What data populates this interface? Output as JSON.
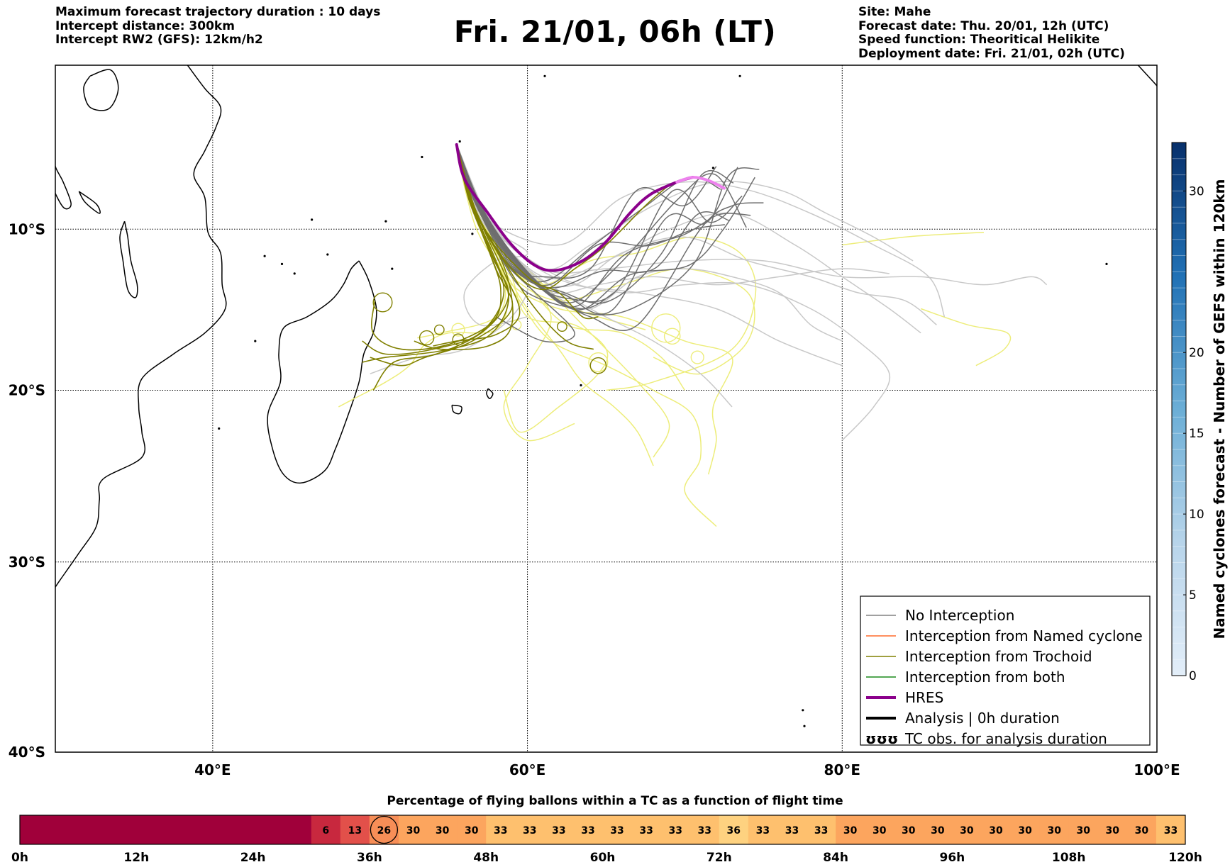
{
  "header": {
    "left_lines": [
      "Maximum forecast trajectory duration : 10 days",
      "Intercept distance: 300km",
      "Intercept RW2 (GFS):  12km/h2"
    ],
    "title": "Fri. 21/01, 06h (LT)",
    "right_lines": [
      "Site: Mahe",
      "Forecast date: Thu. 20/01, 12h (UTC)",
      "Speed function: Theoritical Helikite",
      "Deployment date: Fri. 21/01, 02h (UTC)"
    ]
  },
  "map": {
    "lon_range": [
      30,
      100
    ],
    "lat_range": [
      -40,
      0.5
    ],
    "lon_ticks": [
      {
        "value": 40,
        "label": "40°E"
      },
      {
        "value": 60,
        "label": "60°E"
      },
      {
        "value": 80,
        "label": "80°E"
      },
      {
        "value": 100,
        "label": "100°E"
      }
    ],
    "lat_ticks": [
      {
        "value": -10,
        "label": "10°S"
      },
      {
        "value": -20,
        "label": "20°S"
      },
      {
        "value": -30,
        "label": "30°S"
      },
      {
        "value": -40,
        "label": "40°S"
      }
    ],
    "colors": {
      "no_interception": "#6e6e6e",
      "no_interception_light": "#c8c8c8",
      "trochoid": "#808000",
      "trochoid_light": "#eded7a",
      "hres": "#8b008b",
      "hres_end": "#ee82ee"
    }
  },
  "legend": {
    "items": [
      {
        "label": "No Interception",
        "color": "#808080",
        "width": 1.5,
        "style": "line"
      },
      {
        "label": "Interception from Named cyclone",
        "color": "#ff6a2a",
        "width": 1.5,
        "style": "line"
      },
      {
        "label": "Interception from Trochoid",
        "color": "#808000",
        "width": 1.5,
        "style": "line"
      },
      {
        "label": "Interception from both",
        "color": "#1a8a1a",
        "width": 1.5,
        "style": "line"
      },
      {
        "label": "HRES",
        "color": "#8b008b",
        "width": 4,
        "style": "line"
      },
      {
        "label": "Analysis | 0h duration",
        "color": "#000000",
        "width": 4,
        "style": "line"
      },
      {
        "label": "TC obs. for analysis duration",
        "color": "#000000",
        "width": 0,
        "style": "glyph",
        "glyph": "ʊʊʊ"
      }
    ]
  },
  "colorbar": {
    "label": "Named cyclones forecast - Number of GEFS within 120km",
    "min": 0,
    "max": 33,
    "ticks": [
      0,
      5,
      10,
      15,
      20,
      30
    ]
  },
  "chart_data": {
    "type": "heatmap",
    "title": "Percentage of flying ballons within a TC as a function of flight time",
    "x_range_hours": [
      0,
      120
    ],
    "x_ticks": [
      "0h",
      "12h",
      "24h",
      "36h",
      "48h",
      "60h",
      "72h",
      "84h",
      "96h",
      "108h",
      "120h"
    ],
    "cells": [
      {
        "start_h": 0,
        "end_h": 30,
        "value": null
      },
      {
        "start_h": 30,
        "end_h": 33,
        "value": 6
      },
      {
        "start_h": 33,
        "end_h": 36,
        "value": 13
      },
      {
        "start_h": 36,
        "end_h": 39,
        "value": 26,
        "circled": true
      },
      {
        "start_h": 39,
        "end_h": 42,
        "value": 30
      },
      {
        "start_h": 42,
        "end_h": 45,
        "value": 30
      },
      {
        "start_h": 45,
        "end_h": 48,
        "value": 30
      },
      {
        "start_h": 48,
        "end_h": 51,
        "value": 33
      },
      {
        "start_h": 51,
        "end_h": 54,
        "value": 33
      },
      {
        "start_h": 54,
        "end_h": 57,
        "value": 33
      },
      {
        "start_h": 57,
        "end_h": 60,
        "value": 33
      },
      {
        "start_h": 60,
        "end_h": 63,
        "value": 33
      },
      {
        "start_h": 63,
        "end_h": 66,
        "value": 33
      },
      {
        "start_h": 66,
        "end_h": 69,
        "value": 33
      },
      {
        "start_h": 69,
        "end_h": 72,
        "value": 33
      },
      {
        "start_h": 72,
        "end_h": 75,
        "value": 36
      },
      {
        "start_h": 75,
        "end_h": 78,
        "value": 33
      },
      {
        "start_h": 78,
        "end_h": 81,
        "value": 33
      },
      {
        "start_h": 81,
        "end_h": 84,
        "value": 33
      },
      {
        "start_h": 84,
        "end_h": 87,
        "value": 30
      },
      {
        "start_h": 87,
        "end_h": 90,
        "value": 30
      },
      {
        "start_h": 90,
        "end_h": 93,
        "value": 30
      },
      {
        "start_h": 93,
        "end_h": 96,
        "value": 30
      },
      {
        "start_h": 96,
        "end_h": 99,
        "value": 30
      },
      {
        "start_h": 99,
        "end_h": 102,
        "value": 30
      },
      {
        "start_h": 102,
        "end_h": 105,
        "value": 30
      },
      {
        "start_h": 105,
        "end_h": 108,
        "value": 30
      },
      {
        "start_h": 108,
        "end_h": 111,
        "value": 30
      },
      {
        "start_h": 111,
        "end_h": 114,
        "value": 30
      },
      {
        "start_h": 114,
        "end_h": 117,
        "value": 30
      },
      {
        "start_h": 117,
        "end_h": 120,
        "value": 33
      }
    ]
  }
}
